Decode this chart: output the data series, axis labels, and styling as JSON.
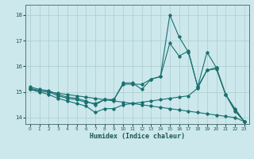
{
  "xlabel": "Humidex (Indice chaleur)",
  "bg_color": "#cce8ec",
  "grid_color": "#aacccc",
  "line_color": "#1a7070",
  "xlim": [
    -0.5,
    23.5
  ],
  "ylim": [
    13.75,
    18.4
  ],
  "yticks": [
    14,
    15,
    16,
    17,
    18
  ],
  "xticks": [
    0,
    1,
    2,
    3,
    4,
    5,
    6,
    7,
    8,
    9,
    10,
    11,
    12,
    13,
    14,
    15,
    16,
    17,
    18,
    19,
    20,
    21,
    22,
    23
  ],
  "series": {
    "line1": {
      "x": [
        0,
        1,
        2,
        3,
        4,
        5,
        6,
        7,
        8,
        9,
        10,
        11,
        12,
        13,
        14,
        15,
        16,
        17,
        18,
        19,
        20,
        21,
        22,
        23
      ],
      "y": [
        15.1,
        15.05,
        15.0,
        14.95,
        14.9,
        14.85,
        14.8,
        14.75,
        14.7,
        14.65,
        14.6,
        14.55,
        14.5,
        14.45,
        14.4,
        14.35,
        14.3,
        14.25,
        14.2,
        14.15,
        14.1,
        14.05,
        14.0,
        13.85
      ]
    },
    "line2": {
      "x": [
        0,
        1,
        2,
        3,
        4,
        5,
        6,
        7,
        8,
        9,
        10,
        11,
        12,
        13,
        14,
        15,
        16,
        17,
        18,
        19,
        20,
        21,
        22,
        23
      ],
      "y": [
        15.1,
        15.0,
        14.9,
        14.75,
        14.65,
        14.55,
        14.45,
        14.2,
        14.35,
        14.35,
        14.5,
        14.55,
        14.6,
        14.65,
        14.7,
        14.75,
        14.8,
        14.85,
        15.15,
        15.85,
        15.9,
        14.9,
        14.25,
        13.85
      ]
    },
    "line3": {
      "x": [
        0,
        1,
        2,
        3,
        4,
        5,
        6,
        7,
        8,
        9,
        10,
        11,
        12,
        13,
        14,
        15,
        16,
        17,
        18,
        19,
        20,
        21,
        22,
        23
      ],
      "y": [
        15.15,
        15.05,
        15.0,
        14.85,
        14.75,
        14.7,
        14.6,
        14.55,
        14.7,
        14.7,
        15.3,
        15.3,
        15.3,
        15.5,
        15.6,
        16.9,
        16.4,
        16.6,
        15.2,
        16.55,
        15.95,
        14.9,
        14.3,
        13.85
      ]
    },
    "line4": {
      "x": [
        0,
        1,
        2,
        3,
        4,
        5,
        6,
        7,
        8,
        9,
        10,
        11,
        12,
        13,
        14,
        15,
        16,
        17,
        18,
        19,
        20,
        21,
        22,
        23
      ],
      "y": [
        15.2,
        15.1,
        15.05,
        14.9,
        14.8,
        14.75,
        14.65,
        14.5,
        14.7,
        14.7,
        15.35,
        15.35,
        15.1,
        15.5,
        15.6,
        18.0,
        17.15,
        16.55,
        15.2,
        15.85,
        15.95,
        14.9,
        14.35,
        13.85
      ]
    }
  }
}
